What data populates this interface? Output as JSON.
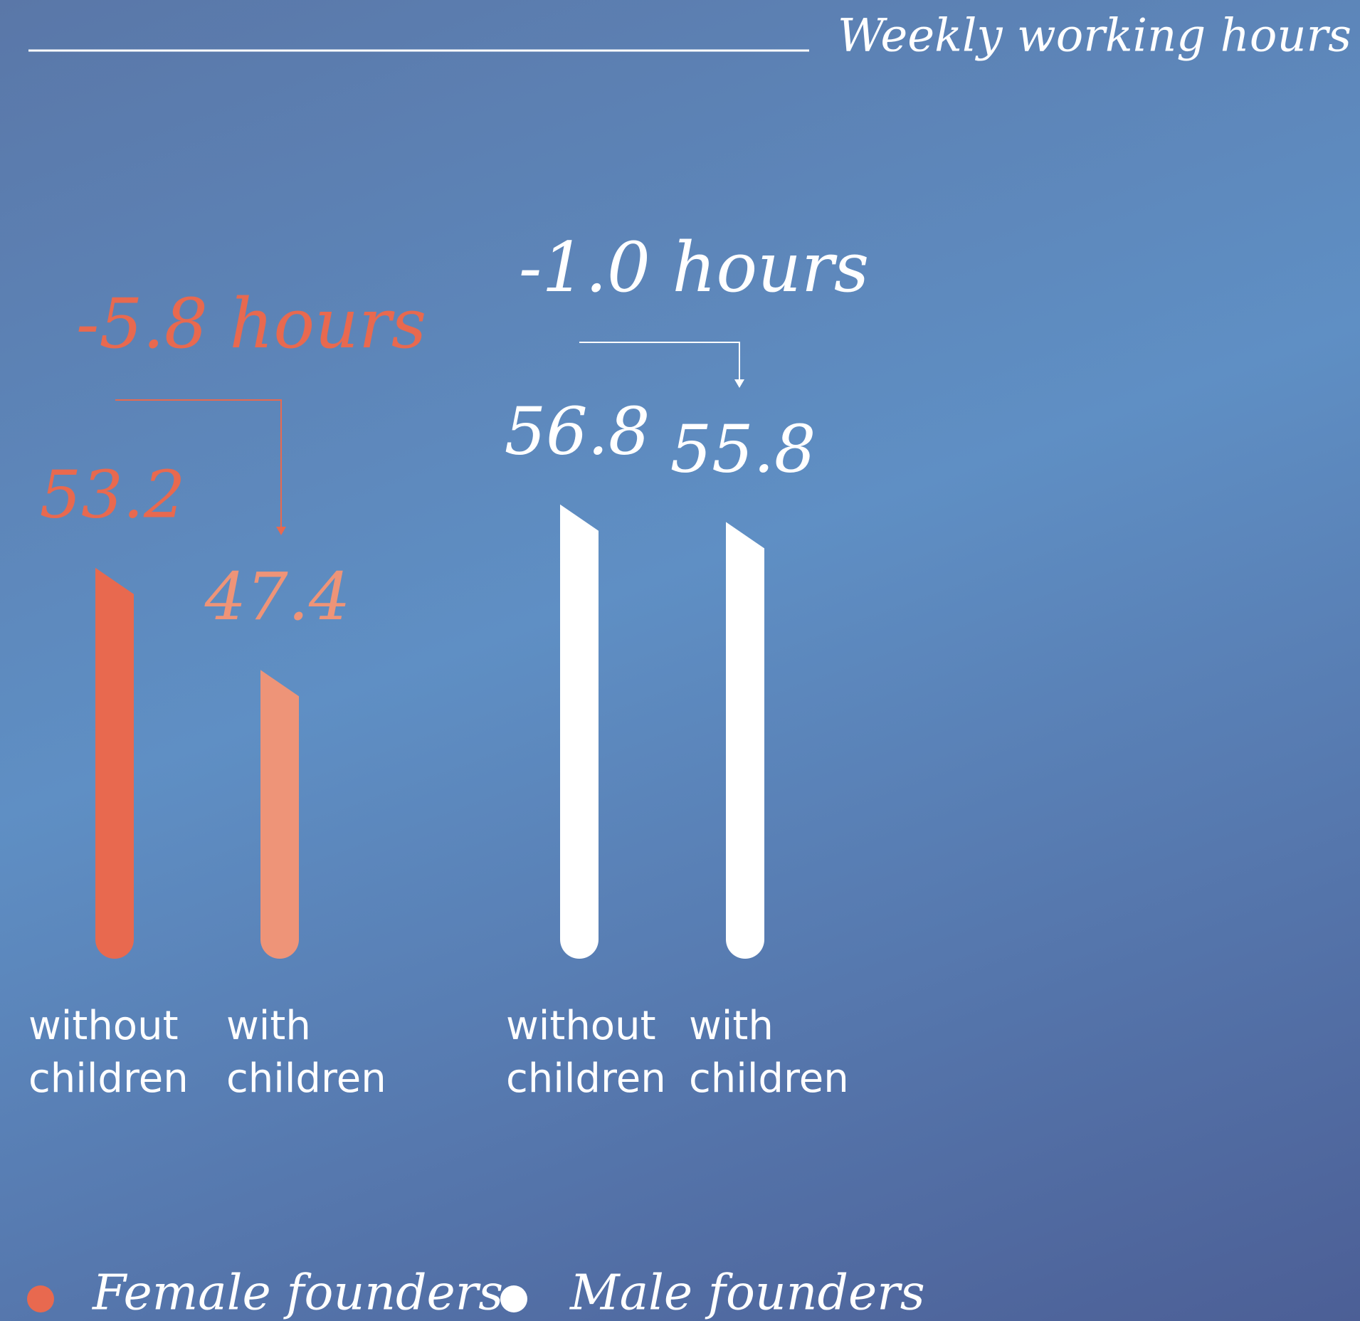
{
  "chart_data": {
    "type": "bar",
    "title": "Weekly working hours",
    "categories": [
      "without children",
      "with children"
    ],
    "series": [
      {
        "name": "Female founders",
        "color": "#e8694f",
        "colors": [
          "#e8694f",
          "#ee9478"
        ],
        "values": [
          53.2,
          47.4
        ]
      },
      {
        "name": "Male founders",
        "color": "#ffffff",
        "colors": [
          "#ffffff",
          "#ffffff"
        ],
        "values": [
          56.8,
          55.8
        ]
      }
    ],
    "annotations": [
      "-5.8 hours",
      "-1.0 hours"
    ],
    "ylim": [
      31,
      58
    ]
  }
}
